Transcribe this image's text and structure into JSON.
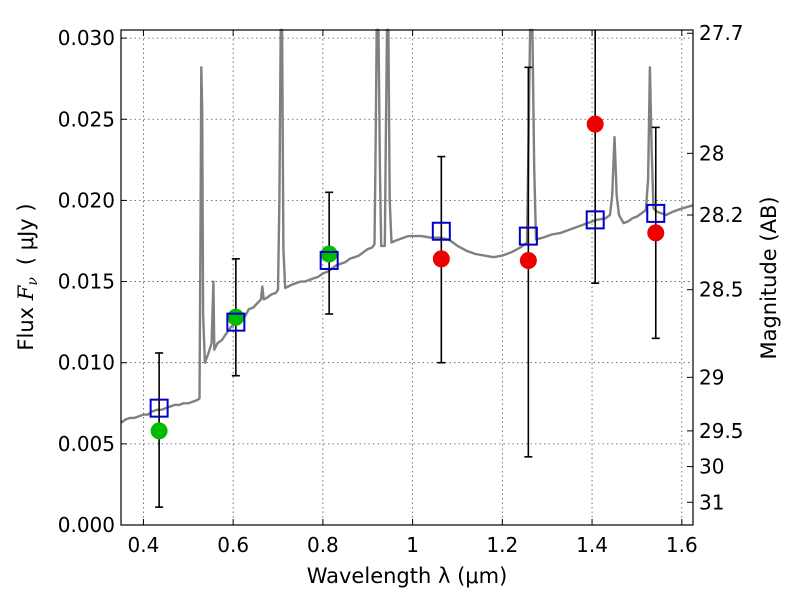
{
  "chart_data": {
    "type": "scatter",
    "xlabel": "Wavelength  λ (μm)",
    "ylabel": "Flux  F_ν  ( μJy )",
    "ylabel_parts": {
      "prefix": "Flux  ",
      "symbol": "F",
      "subscript": "ν",
      "unit": "( μJy )"
    },
    "y2label": "Magnitude (AB)",
    "xlim": [
      0.35,
      1.625
    ],
    "ylim": [
      0.0,
      0.0305
    ],
    "grid": true,
    "x_ticks": [
      {
        "value": 0.4,
        "label": "0.4"
      },
      {
        "value": 0.6,
        "label": "0.6"
      },
      {
        "value": 0.8,
        "label": "0.8"
      },
      {
        "value": 1.0,
        "label": "1"
      },
      {
        "value": 1.2,
        "label": "1.2"
      },
      {
        "value": 1.4,
        "label": "1.4"
      },
      {
        "value": 1.6,
        "label": "1.6"
      }
    ],
    "y_ticks": [
      {
        "value": 0.0,
        "label": "0.000"
      },
      {
        "value": 0.005,
        "label": "0.005"
      },
      {
        "value": 0.01,
        "label": "0.010"
      },
      {
        "value": 0.015,
        "label": "0.015"
      },
      {
        "value": 0.02,
        "label": "0.020"
      },
      {
        "value": 0.025,
        "label": "0.025"
      },
      {
        "value": 0.03,
        "label": "0.030"
      }
    ],
    "y2_ticks": [
      {
        "flux": 0.0303,
        "label": "27.7"
      },
      {
        "flux": 0.0229,
        "label": "28"
      },
      {
        "flux": 0.0191,
        "label": "28.2"
      },
      {
        "flux": 0.0145,
        "label": "28.5"
      },
      {
        "flux": 0.0091,
        "label": "29"
      },
      {
        "flux": 0.0058,
        "label": "29.5"
      },
      {
        "flux": 0.0036,
        "label": "30"
      },
      {
        "flux": 0.0014,
        "label": "31"
      }
    ],
    "colors": {
      "model": "#808080",
      "green": "#00bb00",
      "red": "#ee0000",
      "square": "#0000cc",
      "errorbar": "#000000",
      "grid": "#555555"
    },
    "model_spectrum": [
      [
        0.35,
        0.0063
      ],
      [
        0.36,
        0.0065
      ],
      [
        0.37,
        0.0066
      ],
      [
        0.38,
        0.0066
      ],
      [
        0.39,
        0.0067
      ],
      [
        0.4,
        0.0068
      ],
      [
        0.41,
        0.0068
      ],
      [
        0.42,
        0.007
      ],
      [
        0.43,
        0.0071
      ],
      [
        0.44,
        0.0071
      ],
      [
        0.45,
        0.0072
      ],
      [
        0.46,
        0.0073
      ],
      [
        0.47,
        0.0074
      ],
      [
        0.48,
        0.0074
      ],
      [
        0.49,
        0.0075
      ],
      [
        0.5,
        0.0075
      ],
      [
        0.51,
        0.0076
      ],
      [
        0.52,
        0.0077
      ],
      [
        0.525,
        0.0078
      ],
      [
        0.527,
        0.017
      ],
      [
        0.529,
        0.0282
      ],
      [
        0.531,
        0.0255
      ],
      [
        0.533,
        0.013
      ],
      [
        0.537,
        0.01
      ],
      [
        0.545,
        0.0106
      ],
      [
        0.552,
        0.0112
      ],
      [
        0.556,
        0.015
      ],
      [
        0.558,
        0.0108
      ],
      [
        0.565,
        0.0112
      ],
      [
        0.575,
        0.0114
      ],
      [
        0.585,
        0.0118
      ],
      [
        0.595,
        0.0122
      ],
      [
        0.605,
        0.0124
      ],
      [
        0.615,
        0.0126
      ],
      [
        0.625,
        0.0128
      ],
      [
        0.635,
        0.0133
      ],
      [
        0.645,
        0.0134
      ],
      [
        0.655,
        0.0137
      ],
      [
        0.662,
        0.0139
      ],
      [
        0.665,
        0.0147
      ],
      [
        0.668,
        0.0139
      ],
      [
        0.675,
        0.014
      ],
      [
        0.685,
        0.0142
      ],
      [
        0.695,
        0.0143
      ],
      [
        0.7,
        0.0145
      ],
      [
        0.703,
        0.02
      ],
      [
        0.706,
        0.0305
      ],
      [
        0.709,
        0.0305
      ],
      [
        0.712,
        0.017
      ],
      [
        0.716,
        0.0146
      ],
      [
        0.73,
        0.0148
      ],
      [
        0.74,
        0.0149
      ],
      [
        0.75,
        0.015
      ],
      [
        0.76,
        0.015
      ],
      [
        0.77,
        0.0151
      ],
      [
        0.78,
        0.0152
      ],
      [
        0.79,
        0.0153
      ],
      [
        0.8,
        0.0155
      ],
      [
        0.81,
        0.0156
      ],
      [
        0.82,
        0.0158
      ],
      [
        0.83,
        0.016
      ],
      [
        0.84,
        0.0161
      ],
      [
        0.85,
        0.0162
      ],
      [
        0.86,
        0.0164
      ],
      [
        0.87,
        0.0165
      ],
      [
        0.88,
        0.0166
      ],
      [
        0.89,
        0.0168
      ],
      [
        0.9,
        0.017
      ],
      [
        0.91,
        0.0171
      ],
      [
        0.915,
        0.0173
      ],
      [
        0.917,
        0.022
      ],
      [
        0.92,
        0.0305
      ],
      [
        0.924,
        0.0305
      ],
      [
        0.927,
        0.022
      ],
      [
        0.93,
        0.0172
      ],
      [
        0.938,
        0.0172
      ],
      [
        0.94,
        0.023
      ],
      [
        0.943,
        0.0305
      ],
      [
        0.946,
        0.0305
      ],
      [
        0.949,
        0.02
      ],
      [
        0.953,
        0.0174
      ],
      [
        0.96,
        0.0175
      ],
      [
        0.97,
        0.0176
      ],
      [
        0.98,
        0.0177
      ],
      [
        0.99,
        0.0178
      ],
      [
        1.0,
        0.0178
      ],
      [
        1.02,
        0.0178
      ],
      [
        1.04,
        0.0177
      ],
      [
        1.06,
        0.0177
      ],
      [
        1.08,
        0.0176
      ],
      [
        1.09,
        0.0174
      ],
      [
        1.1,
        0.0172
      ],
      [
        1.12,
        0.0169
      ],
      [
        1.14,
        0.0167
      ],
      [
        1.16,
        0.0166
      ],
      [
        1.18,
        0.0165
      ],
      [
        1.2,
        0.0166
      ],
      [
        1.22,
        0.0168
      ],
      [
        1.24,
        0.0171
      ],
      [
        1.255,
        0.0174
      ],
      [
        1.258,
        0.023
      ],
      [
        1.262,
        0.0305
      ],
      [
        1.267,
        0.0305
      ],
      [
        1.271,
        0.022
      ],
      [
        1.275,
        0.0176
      ],
      [
        1.29,
        0.0177
      ],
      [
        1.31,
        0.0179
      ],
      [
        1.33,
        0.018
      ],
      [
        1.35,
        0.0182
      ],
      [
        1.37,
        0.0184
      ],
      [
        1.39,
        0.0186
      ],
      [
        1.41,
        0.0188
      ],
      [
        1.43,
        0.0189
      ],
      [
        1.44,
        0.0191
      ],
      [
        1.445,
        0.0203
      ],
      [
        1.45,
        0.0239
      ],
      [
        1.455,
        0.0203
      ],
      [
        1.46,
        0.0191
      ],
      [
        1.47,
        0.0186
      ],
      [
        1.48,
        0.0187
      ],
      [
        1.49,
        0.0189
      ],
      [
        1.5,
        0.019
      ],
      [
        1.51,
        0.0192
      ],
      [
        1.52,
        0.0194
      ],
      [
        1.525,
        0.0213
      ],
      [
        1.529,
        0.0282
      ],
      [
        1.533,
        0.023
      ],
      [
        1.537,
        0.0195
      ],
      [
        1.545,
        0.0193
      ],
      [
        1.555,
        0.0192
      ],
      [
        1.565,
        0.0191
      ],
      [
        1.58,
        0.0193
      ],
      [
        1.6,
        0.0195
      ],
      [
        1.625,
        0.0197
      ]
    ],
    "model_photometry": [
      {
        "x": 0.435,
        "y": 0.0072
      },
      {
        "x": 0.606,
        "y": 0.0125
      },
      {
        "x": 0.814,
        "y": 0.0163
      },
      {
        "x": 1.064,
        "y": 0.0181
      },
      {
        "x": 1.258,
        "y": 0.0178
      },
      {
        "x": 1.407,
        "y": 0.0188
      },
      {
        "x": 1.542,
        "y": 0.0192
      }
    ],
    "observed_green": [
      {
        "x": 0.435,
        "y": 0.0058
      },
      {
        "x": 0.606,
        "y": 0.0128
      },
      {
        "x": 0.814,
        "y": 0.0167
      }
    ],
    "observed_red": [
      {
        "x": 1.064,
        "y": 0.0164
      },
      {
        "x": 1.258,
        "y": 0.0163
      },
      {
        "x": 1.407,
        "y": 0.0247
      },
      {
        "x": 1.542,
        "y": 0.018
      }
    ],
    "error_bars": [
      {
        "x": 0.435,
        "low": 0.0011,
        "high": 0.0106
      },
      {
        "x": 0.606,
        "low": 0.0092,
        "high": 0.0164
      },
      {
        "x": 0.814,
        "low": 0.013,
        "high": 0.0205
      },
      {
        "x": 1.064,
        "low": 0.01,
        "high": 0.0227
      },
      {
        "x": 1.258,
        "low": 0.0042,
        "high": 0.0282
      },
      {
        "x": 1.407,
        "low": 0.0149,
        "high": 0.0305
      },
      {
        "x": 1.542,
        "low": 0.0115,
        "high": 0.0245
      }
    ]
  }
}
